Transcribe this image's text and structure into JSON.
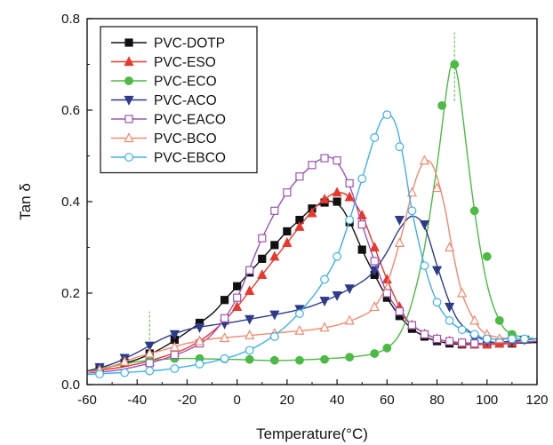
{
  "chart_data": {
    "type": "line",
    "xlabel": "Temperature(°C)",
    "ylabel": "Tan δ",
    "xlim": [
      -60,
      120
    ],
    "ylim": [
      0,
      0.8
    ],
    "xticks": [
      -60,
      -40,
      -20,
      0,
      20,
      40,
      60,
      80,
      100,
      120
    ],
    "yticks": [
      0.0,
      0.2,
      0.4,
      0.6,
      0.8
    ],
    "ytick_labels": [
      "0.0",
      "0.2",
      "0.4",
      "0.6",
      "0.8"
    ],
    "grid": false,
    "legend_position": "top-left",
    "series": [
      {
        "name": "PVC-DOTP",
        "color": "#111111",
        "marker": "square",
        "filled": true,
        "x": [
          -60,
          -50,
          -40,
          -30,
          -20,
          -10,
          -5,
          0,
          5,
          10,
          15,
          20,
          25,
          30,
          35,
          38,
          42,
          46,
          50,
          55,
          60,
          65,
          70,
          75,
          80,
          85,
          90,
          100,
          110,
          120
        ],
        "y": [
          0.03,
          0.04,
          0.055,
          0.08,
          0.115,
          0.155,
          0.185,
          0.215,
          0.245,
          0.275,
          0.305,
          0.335,
          0.36,
          0.385,
          0.398,
          0.4,
          0.385,
          0.345,
          0.295,
          0.24,
          0.19,
          0.15,
          0.122,
          0.105,
          0.095,
          0.09,
          0.088,
          0.088,
          0.09,
          0.092
        ],
        "markers_x": [
          -55,
          -45,
          -35,
          -25,
          -15,
          -5,
          0,
          5,
          10,
          15,
          20,
          25,
          30,
          35,
          40,
          45,
          50,
          55,
          60,
          65,
          70,
          75,
          80,
          85,
          90,
          95,
          100,
          105,
          110
        ],
        "markers_y": [
          0.036,
          0.048,
          0.068,
          0.098,
          0.135,
          0.185,
          0.215,
          0.245,
          0.275,
          0.305,
          0.335,
          0.36,
          0.385,
          0.398,
          0.4,
          0.355,
          0.295,
          0.24,
          0.19,
          0.15,
          0.122,
          0.105,
          0.095,
          0.09,
          0.088,
          0.088,
          0.088,
          0.09,
          0.09
        ]
      },
      {
        "name": "PVC-ESO",
        "color": "#e8392f",
        "marker": "triangle-up",
        "filled": true,
        "x": [
          -60,
          -50,
          -40,
          -30,
          -20,
          -10,
          0,
          10,
          20,
          30,
          35,
          40,
          45,
          50,
          55,
          60,
          65,
          70,
          80,
          90,
          100,
          110,
          120
        ],
        "y": [
          0.03,
          0.035,
          0.045,
          0.06,
          0.08,
          0.115,
          0.17,
          0.24,
          0.31,
          0.38,
          0.405,
          0.42,
          0.41,
          0.37,
          0.3,
          0.23,
          0.17,
          0.13,
          0.1,
          0.09,
          0.088,
          0.09,
          0.095
        ],
        "markers_x": [
          -35,
          -25,
          -15,
          -5,
          0,
          5,
          10,
          15,
          20,
          25,
          30,
          35,
          40,
          45,
          50,
          55,
          60,
          65,
          70,
          75,
          80,
          85,
          90,
          95,
          100,
          105,
          110
        ],
        "markers_y": [
          0.05,
          0.07,
          0.095,
          0.14,
          0.17,
          0.205,
          0.24,
          0.28,
          0.31,
          0.345,
          0.375,
          0.405,
          0.42,
          0.41,
          0.37,
          0.3,
          0.23,
          0.17,
          0.13,
          0.11,
          0.1,
          0.095,
          0.09,
          0.088,
          0.088,
          0.09,
          0.092
        ]
      },
      {
        "name": "PVC-ECO",
        "color": "#4cba45",
        "marker": "circle",
        "filled": true,
        "x": [
          -60,
          -50,
          -40,
          -30,
          -20,
          -10,
          0,
          10,
          20,
          30,
          40,
          45,
          50,
          55,
          60,
          65,
          70,
          75,
          80,
          84,
          86,
          88,
          90,
          95,
          100,
          105,
          110,
          120
        ],
        "y": [
          0.03,
          0.04,
          0.05,
          0.055,
          0.057,
          0.056,
          0.055,
          0.053,
          0.053,
          0.055,
          0.058,
          0.06,
          0.063,
          0.068,
          0.08,
          0.11,
          0.18,
          0.3,
          0.48,
          0.65,
          0.7,
          0.68,
          0.6,
          0.38,
          0.22,
          0.14,
          0.11,
          0.1
        ],
        "markers_x": [
          -35,
          -25,
          -15,
          -5,
          5,
          15,
          25,
          35,
          45,
          55,
          60,
          82,
          87,
          95,
          100,
          105,
          110
        ],
        "markers_y": [
          0.055,
          0.057,
          0.057,
          0.056,
          0.055,
          0.053,
          0.053,
          0.055,
          0.06,
          0.068,
          0.08,
          0.61,
          0.7,
          0.38,
          0.28,
          0.14,
          0.11
        ]
      },
      {
        "name": "PVC-ACO",
        "color": "#2e3b8a",
        "marker": "triangle-down",
        "filled": true,
        "x": [
          -60,
          -50,
          -40,
          -30,
          -20,
          -10,
          0,
          10,
          20,
          30,
          40,
          50,
          55,
          60,
          65,
          70,
          75,
          80,
          85,
          90,
          100,
          110,
          120
        ],
        "y": [
          0.03,
          0.045,
          0.07,
          0.1,
          0.12,
          0.13,
          0.138,
          0.148,
          0.158,
          0.172,
          0.195,
          0.225,
          0.25,
          0.29,
          0.34,
          0.368,
          0.345,
          0.26,
          0.18,
          0.13,
          0.095,
          0.095,
          0.1
        ],
        "markers_x": [
          -55,
          -45,
          -35,
          -25,
          -15,
          -5,
          5,
          15,
          25,
          35,
          40,
          45,
          55,
          65,
          75,
          80,
          85,
          95,
          100,
          110,
          115
        ],
        "markers_y": [
          0.038,
          0.058,
          0.085,
          0.11,
          0.125,
          0.133,
          0.143,
          0.153,
          0.165,
          0.183,
          0.195,
          0.21,
          0.25,
          0.36,
          0.35,
          0.25,
          0.17,
          0.1,
          0.095,
          0.095,
          0.098
        ]
      },
      {
        "name": "PVC-EACO",
        "color": "#9b55b5",
        "marker": "square",
        "filled": false,
        "x": [
          -60,
          -50,
          -40,
          -30,
          -20,
          -10,
          0,
          10,
          20,
          30,
          35,
          38,
          42,
          46,
          50,
          55,
          60,
          65,
          70,
          80,
          90,
          100,
          110,
          120
        ],
        "y": [
          0.025,
          0.03,
          0.04,
          0.055,
          0.075,
          0.11,
          0.19,
          0.32,
          0.42,
          0.48,
          0.495,
          0.495,
          0.47,
          0.42,
          0.35,
          0.27,
          0.2,
          0.16,
          0.13,
          0.1,
          0.092,
          0.09,
          0.092,
          0.095
        ],
        "markers_x": [
          -35,
          -25,
          -15,
          -5,
          0,
          5,
          10,
          15,
          20,
          25,
          30,
          35,
          40,
          45,
          50,
          55,
          60,
          65,
          70,
          75,
          80,
          85,
          90,
          95
        ],
        "markers_y": [
          0.047,
          0.065,
          0.09,
          0.145,
          0.19,
          0.25,
          0.32,
          0.38,
          0.42,
          0.455,
          0.48,
          0.495,
          0.49,
          0.44,
          0.35,
          0.27,
          0.2,
          0.16,
          0.13,
          0.11,
          0.1,
          0.095,
          0.092,
          0.09
        ]
      },
      {
        "name": "PVC-BCO",
        "color": "#f08a70",
        "marker": "triangle-up",
        "filled": false,
        "x": [
          -60,
          -50,
          -40,
          -30,
          -20,
          -10,
          0,
          10,
          20,
          30,
          40,
          50,
          55,
          60,
          65,
          70,
          73,
          76,
          79,
          83,
          86,
          90,
          95,
          100,
          110,
          120
        ],
        "y": [
          0.025,
          0.04,
          0.06,
          0.075,
          0.09,
          0.1,
          0.105,
          0.11,
          0.115,
          0.12,
          0.13,
          0.15,
          0.17,
          0.22,
          0.31,
          0.42,
          0.47,
          0.49,
          0.47,
          0.39,
          0.3,
          0.2,
          0.14,
          0.11,
          0.1,
          0.1
        ],
        "markers_x": [
          -55,
          -45,
          -35,
          -25,
          -15,
          -5,
          5,
          15,
          25,
          35,
          45,
          55,
          65,
          70,
          75,
          80,
          85,
          90,
          95,
          100,
          105
        ],
        "markers_y": [
          0.032,
          0.05,
          0.068,
          0.082,
          0.095,
          0.102,
          0.108,
          0.112,
          0.118,
          0.125,
          0.14,
          0.17,
          0.31,
          0.42,
          0.49,
          0.43,
          0.3,
          0.2,
          0.14,
          0.11,
          0.1
        ]
      },
      {
        "name": "PVC-EBCO",
        "color": "#3fb0e6",
        "marker": "circle",
        "filled": false,
        "x": [
          -60,
          -50,
          -40,
          -30,
          -20,
          -10,
          0,
          10,
          20,
          30,
          35,
          40,
          45,
          50,
          55,
          58,
          61,
          64,
          67,
          70,
          75,
          80,
          85,
          90,
          95,
          100,
          110,
          120
        ],
        "y": [
          0.022,
          0.025,
          0.028,
          0.032,
          0.04,
          0.05,
          0.065,
          0.09,
          0.13,
          0.19,
          0.23,
          0.28,
          0.36,
          0.45,
          0.54,
          0.58,
          0.59,
          0.56,
          0.48,
          0.38,
          0.26,
          0.18,
          0.14,
          0.12,
          0.11,
          0.1,
          0.1,
          0.1
        ],
        "markers_x": [
          -55,
          -45,
          -35,
          -25,
          -15,
          -5,
          5,
          15,
          25,
          35,
          40,
          45,
          50,
          55,
          60,
          65,
          70,
          75,
          80,
          85,
          90,
          95,
          100,
          110,
          115
        ],
        "markers_y": [
          0.023,
          0.026,
          0.03,
          0.035,
          0.045,
          0.057,
          0.075,
          0.105,
          0.155,
          0.23,
          0.28,
          0.36,
          0.45,
          0.54,
          0.59,
          0.52,
          0.38,
          0.26,
          0.18,
          0.14,
          0.12,
          0.11,
          0.1,
          0.1,
          0.1
        ]
      }
    ],
    "annotations": [
      {
        "type": "dashed-vertical-marker",
        "x": -35,
        "y_range": [
          0.02,
          0.16
        ],
        "color": "#4cba45"
      },
      {
        "type": "dashed-vertical-marker",
        "x": 87,
        "y_range": [
          0.62,
          0.77
        ],
        "color": "#4cba45"
      }
    ]
  }
}
